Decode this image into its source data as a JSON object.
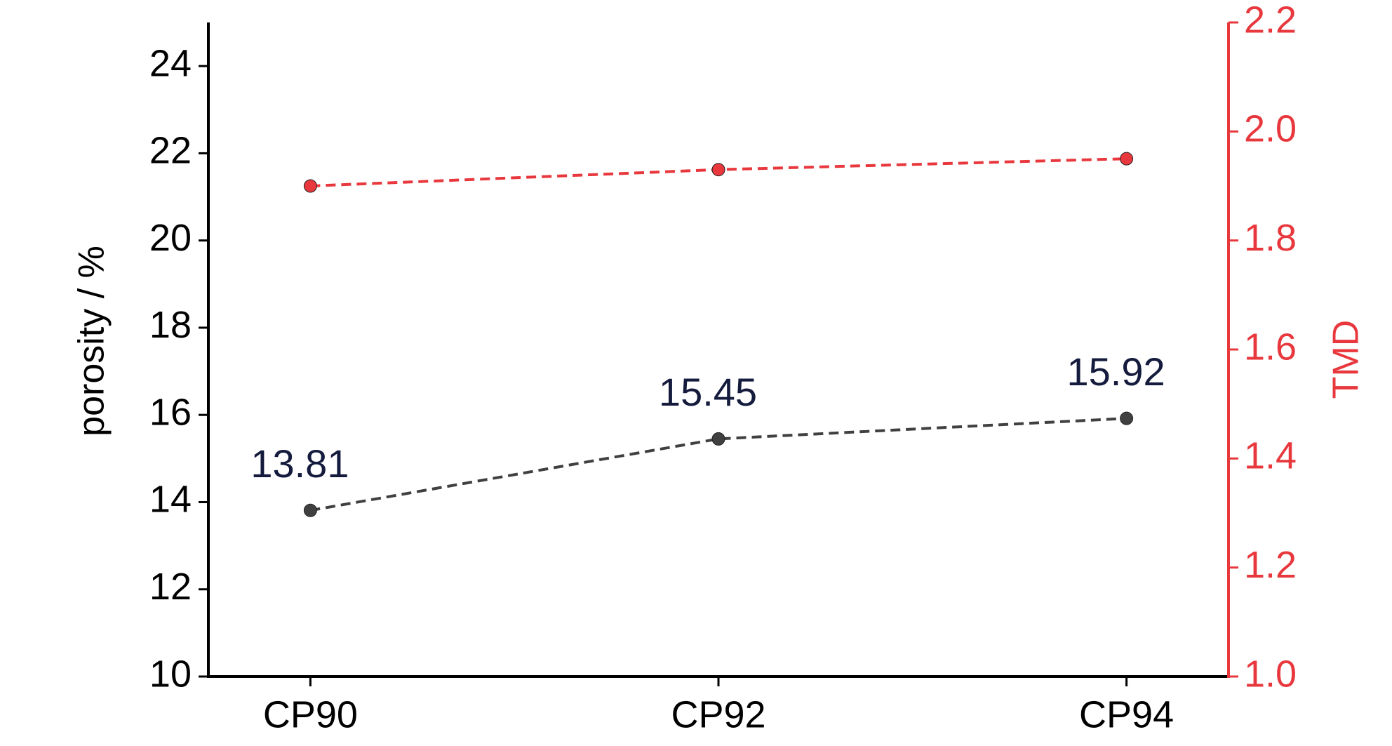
{
  "chart_data": {
    "type": "line",
    "categories": [
      "CP90",
      "CP92",
      "CP94"
    ],
    "y_label": "porosity / %",
    "y2_label": "TMD",
    "ylim": [
      10,
      25
    ],
    "yticks": [
      10,
      12,
      14,
      16,
      18,
      20,
      22,
      24
    ],
    "y2lim": [
      1.0,
      2.2
    ],
    "y2ticks": [
      {
        "value": 1.0,
        "label": "1.0"
      },
      1.2,
      1.4,
      1.6,
      1.8,
      {
        "value": 2.0,
        "label": "2.0"
      },
      2.2
    ],
    "axis_color": "#000000",
    "y2_axis_color": "#e8383d",
    "series": [
      {
        "color": "#404040",
        "values": [
          13.81,
          15.45,
          15.92
        ]
      },
      {
        "color": "#e8383d",
        "axis": "y2",
        "values": [
          1.9,
          1.93,
          1.95
        ]
      }
    ]
  }
}
